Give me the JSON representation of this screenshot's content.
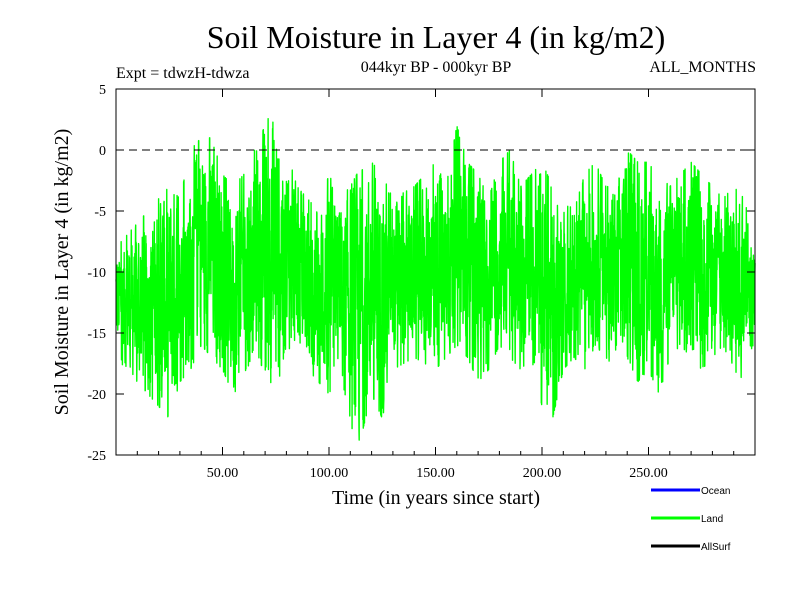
{
  "chart_data": {
    "type": "line",
    "title": "Soil Moisture in Layer 4 (in kg/m2)",
    "subtitle": "044kyr BP - 000kyr BP",
    "experiment": "Expt = tdwzH-tdwza",
    "months": "ALL_MONTHS",
    "xlabel": "Time (in years since start)",
    "ylabel": "Soil Moisture in Layer 4 (in kg/m2)",
    "xlim": [
      0,
      300
    ],
    "ylim": [
      -25,
      5
    ],
    "x_ticks": [
      50,
      100,
      150,
      200,
      250
    ],
    "x_tick_labels": [
      "50.00",
      "100.00",
      "150.00",
      "200.00",
      "250.00"
    ],
    "y_ticks": [
      5,
      0,
      -5,
      -10,
      -15,
      -20,
      -25
    ],
    "y_tick_labels": [
      "5",
      "0",
      "-5",
      "-10",
      "-15",
      "-20",
      "-25"
    ],
    "reference_line": 0,
    "legend": [
      {
        "name": "Ocean",
        "color": "#0000ff"
      },
      {
        "name": "Land",
        "color": "#00ff00"
      },
      {
        "name": "AllSurf",
        "color": "#000000"
      }
    ],
    "series": [
      {
        "name": "Land",
        "color": "#00ff00",
        "samples_per_year": 12,
        "mean": -10.5,
        "min": -25,
        "max": 4,
        "envelope_x": [
          0,
          10,
          20,
          25,
          30,
          35,
          40,
          45,
          50,
          55,
          60,
          65,
          70,
          75,
          80,
          85,
          90,
          95,
          100,
          105,
          110,
          113,
          120,
          125,
          130,
          140,
          150,
          155,
          160,
          165,
          170,
          175,
          180,
          185,
          190,
          195,
          200,
          205,
          210,
          215,
          220,
          225,
          230,
          235,
          240,
          245,
          250,
          255,
          260,
          265,
          270,
          275,
          280,
          285,
          290,
          295,
          300
        ],
        "envelope_low": [
          -17,
          -19,
          -21,
          -22,
          -19,
          -18,
          -16,
          -17,
          -18,
          -20,
          -19,
          -17,
          -18,
          -20,
          -16,
          -17,
          -18,
          -19,
          -20,
          -18,
          -22,
          -25,
          -20,
          -22,
          -18,
          -17,
          -18,
          -17,
          -16,
          -17,
          -19,
          -18,
          -16,
          -17,
          -18,
          -17,
          -21,
          -22,
          -18,
          -17,
          -18,
          -16,
          -17,
          -18,
          -17,
          -19,
          -18,
          -20,
          -17,
          -16,
          -17,
          -18,
          -17,
          -16,
          -18,
          -19,
          -16
        ],
        "envelope_high": [
          -8,
          -6,
          -4,
          -3,
          -4,
          0,
          1,
          1,
          -2,
          -3,
          -2,
          0,
          2,
          4,
          0,
          -3,
          -4,
          -5,
          -2,
          -4,
          -3,
          -2,
          -1,
          -2,
          -4,
          -3,
          -1,
          -3,
          2,
          -1,
          -2,
          -4,
          -1,
          0,
          -3,
          -2,
          -1,
          -3,
          -4,
          -5,
          -2,
          -1,
          -3,
          -3,
          0,
          -1,
          -1,
          -2,
          -3,
          -2,
          -1,
          -2,
          -3,
          -4,
          -3,
          -4,
          -8
        ]
      }
    ]
  }
}
